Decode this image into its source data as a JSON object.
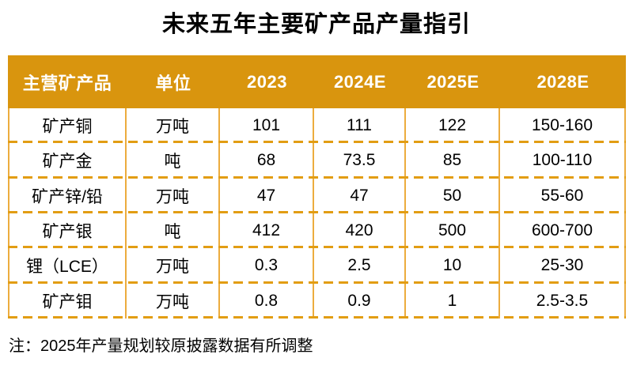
{
  "title": "未来五年主要矿产品产量指引",
  "note": "注：2025年产量规划较原披露数据有所调整",
  "colors": {
    "header_bg": "#D9950E",
    "header_text": "#FFFFFF",
    "vline": "#ECAC3E",
    "dash": "#E29D13",
    "body_text": "#000000"
  },
  "chart_data": {
    "type": "table",
    "title": "未来五年主要矿产品产量指引",
    "columns": [
      "主营矿产品",
      "单位",
      "2023",
      "2024E",
      "2025E",
      "2028E"
    ],
    "rows": [
      [
        "矿产铜",
        "万吨",
        "101",
        "111",
        "122",
        "150-160"
      ],
      [
        "矿产金",
        "吨",
        "68",
        "73.5",
        "85",
        "100-110"
      ],
      [
        "矿产锌/铅",
        "万吨",
        "47",
        "47",
        "50",
        "55-60"
      ],
      [
        "矿产银",
        "吨",
        "412",
        "420",
        "500",
        "600-700"
      ],
      [
        "锂（LCE）",
        "万吨",
        "0.3",
        "2.5",
        "10",
        "25-30"
      ],
      [
        "矿产钼",
        "万吨",
        "0.8",
        "0.9",
        "1",
        "2.5-3.5"
      ]
    ],
    "note": "注：2025年产量规划较原披露数据有所调整",
    "layout": "header row solid gold band, body rows white with solid gold column dividers and dashed gold row dividers"
  }
}
